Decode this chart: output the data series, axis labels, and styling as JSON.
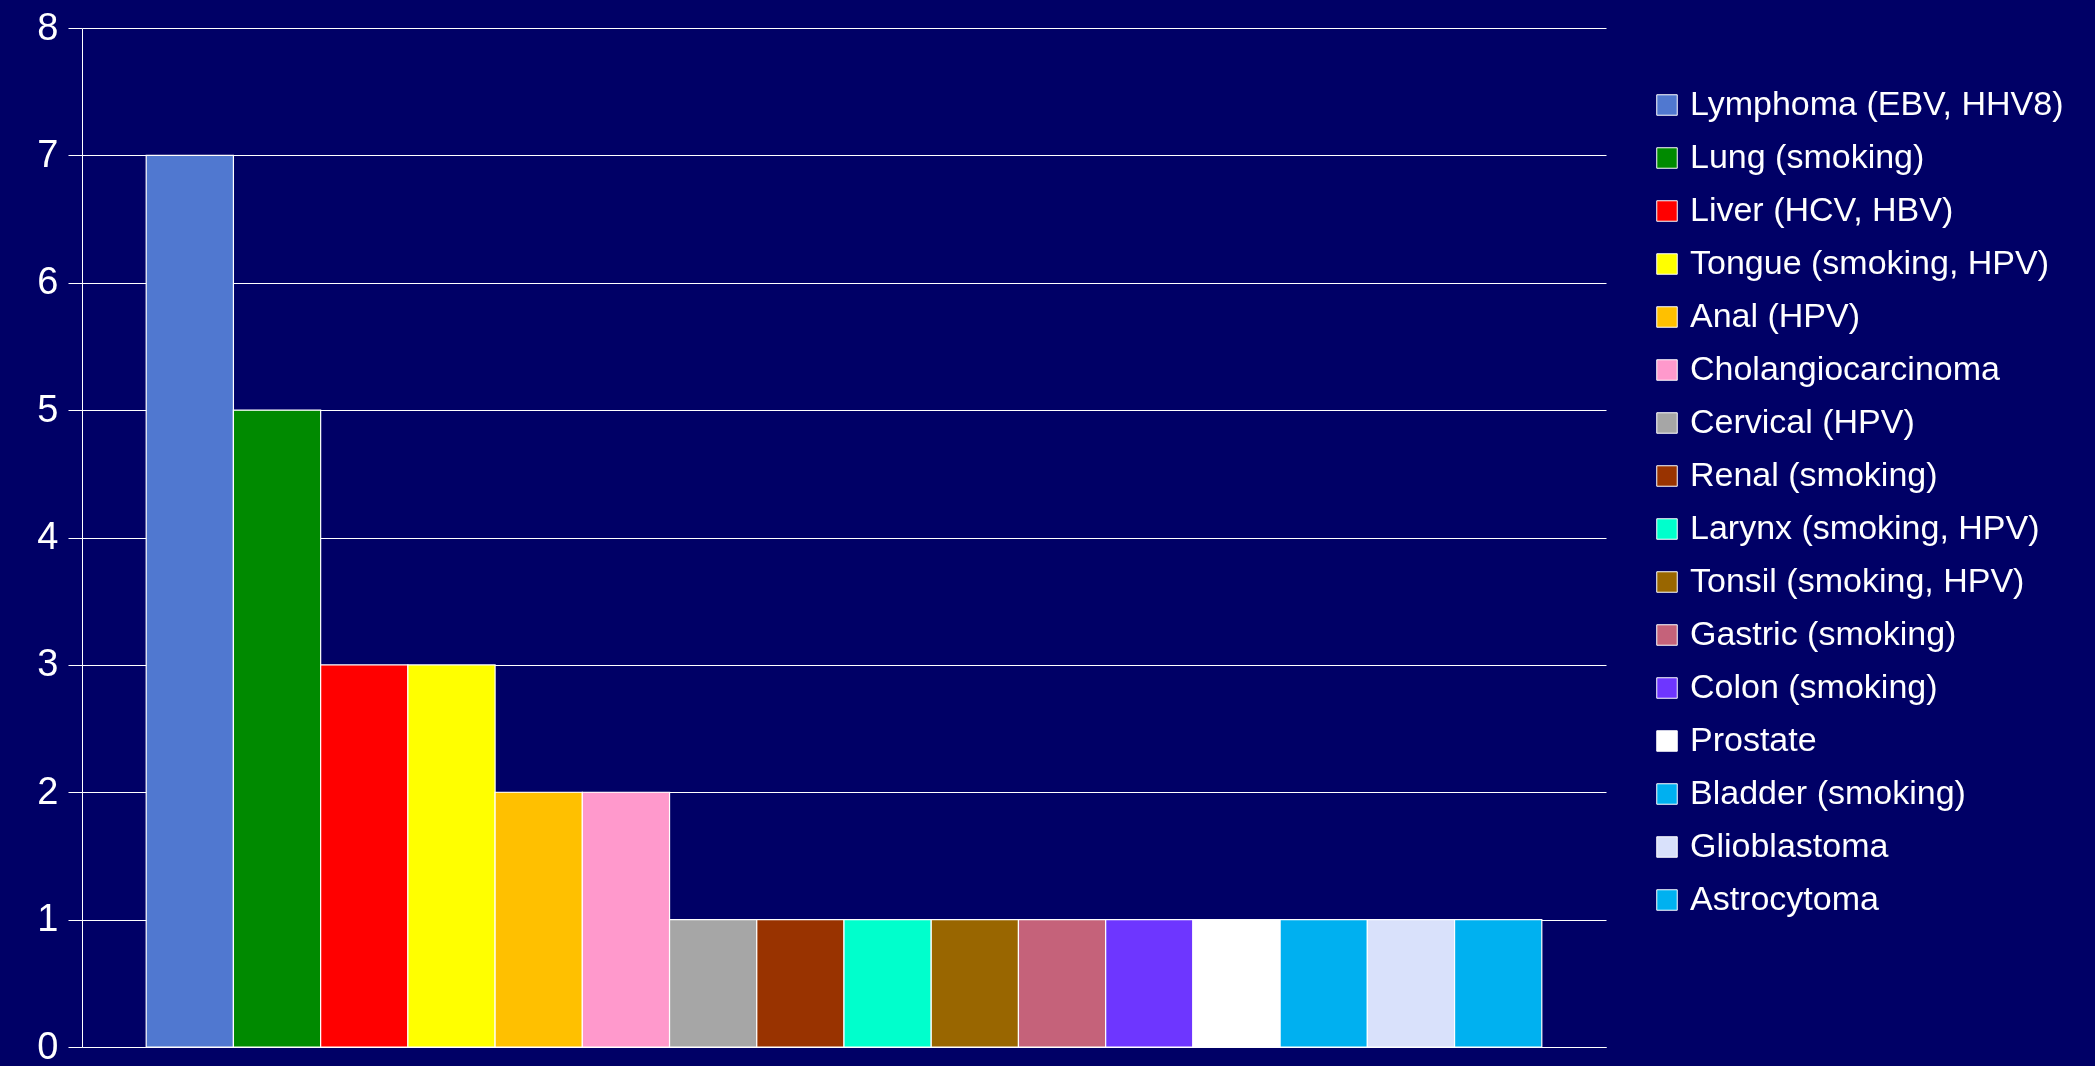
{
  "chart_data": {
    "type": "bar",
    "categories": [
      null
    ],
    "series": [
      {
        "name": "Lymphoma (EBV, HHV8)",
        "color": "#5078d0",
        "values": [
          7
        ]
      },
      {
        "name": "Lung (smoking)",
        "color": "#008a00",
        "values": [
          5
        ]
      },
      {
        "name": "Liver (HCV, HBV)",
        "color": "#ff0000",
        "values": [
          3
        ]
      },
      {
        "name": "Tongue (smoking, HPV)",
        "color": "#ffff00",
        "values": [
          3
        ]
      },
      {
        "name": "Anal (HPV)",
        "color": "#ffc000",
        "values": [
          2
        ]
      },
      {
        "name": "Cholangiocarcinoma",
        "color": "#ff99cc",
        "values": [
          2
        ]
      },
      {
        "name": "Cervical (HPV)",
        "color": "#a6a6a6",
        "values": [
          1
        ]
      },
      {
        "name": "Renal (smoking)",
        "color": "#993300",
        "values": [
          1
        ]
      },
      {
        "name": "Larynx (smoking, HPV)",
        "color": "#00ffcc",
        "values": [
          1
        ]
      },
      {
        "name": "Tonsil (smoking, HPV)",
        "color": "#996600",
        "values": [
          1
        ]
      },
      {
        "name": "Gastric (smoking)",
        "color": "#c5627a",
        "values": [
          1
        ]
      },
      {
        "name": "Colon (smoking)",
        "color": "#6e36ff",
        "values": [
          1
        ]
      },
      {
        "name": "Prostate",
        "color": "#ffffff",
        "values": [
          1
        ]
      },
      {
        "name": "Bladder (smoking)",
        "color": "#00b0f0",
        "values": [
          1
        ]
      },
      {
        "name": "Glioblastoma",
        "color": "#d9e1fb",
        "values": [
          1
        ]
      },
      {
        "name": "Astrocytoma",
        "color": "#00b1f0",
        "values": [
          1
        ]
      }
    ],
    "ylim": [
      0,
      8
    ],
    "yticks": [
      0,
      1,
      2,
      3,
      4,
      5,
      6,
      7,
      8
    ],
    "grid": "y",
    "legend": "right"
  }
}
